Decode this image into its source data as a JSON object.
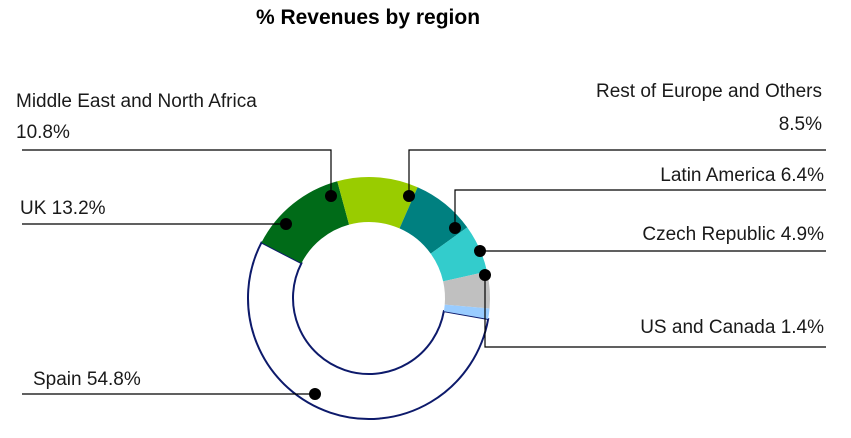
{
  "chart_data": {
    "type": "pie",
    "title": "% Revenues by region",
    "style": "donut",
    "unit": "%",
    "legend": "none",
    "slices": [
      {
        "name": "Spain",
        "value": 54.8,
        "label": "Spain 54.8%",
        "color": "#ffffff",
        "stroke": "#0d1a6b"
      },
      {
        "name": "UK",
        "value": 13.2,
        "label": "UK 13.2%",
        "color": "#006b18"
      },
      {
        "name": "Middle East and North Africa",
        "value": 10.8,
        "label": "Middle East and North Africa",
        "value_label": "10.8%",
        "color": "#99cc00"
      },
      {
        "name": "Rest of Europe and Others",
        "value": 8.5,
        "label": "Rest of Europe and Others",
        "value_label": "8.5%",
        "color": "#008080"
      },
      {
        "name": "Latin America",
        "value": 6.4,
        "label": "Latin America 6.4%",
        "color": "#33cccc"
      },
      {
        "name": "Czech Republic",
        "value": 4.9,
        "label": "Czech Republic 4.9%",
        "color": "#c0c0c0"
      },
      {
        "name": "US and Canada",
        "value": 1.4,
        "label": "US and Canada 1.4%",
        "color": "#99ccff"
      }
    ]
  }
}
